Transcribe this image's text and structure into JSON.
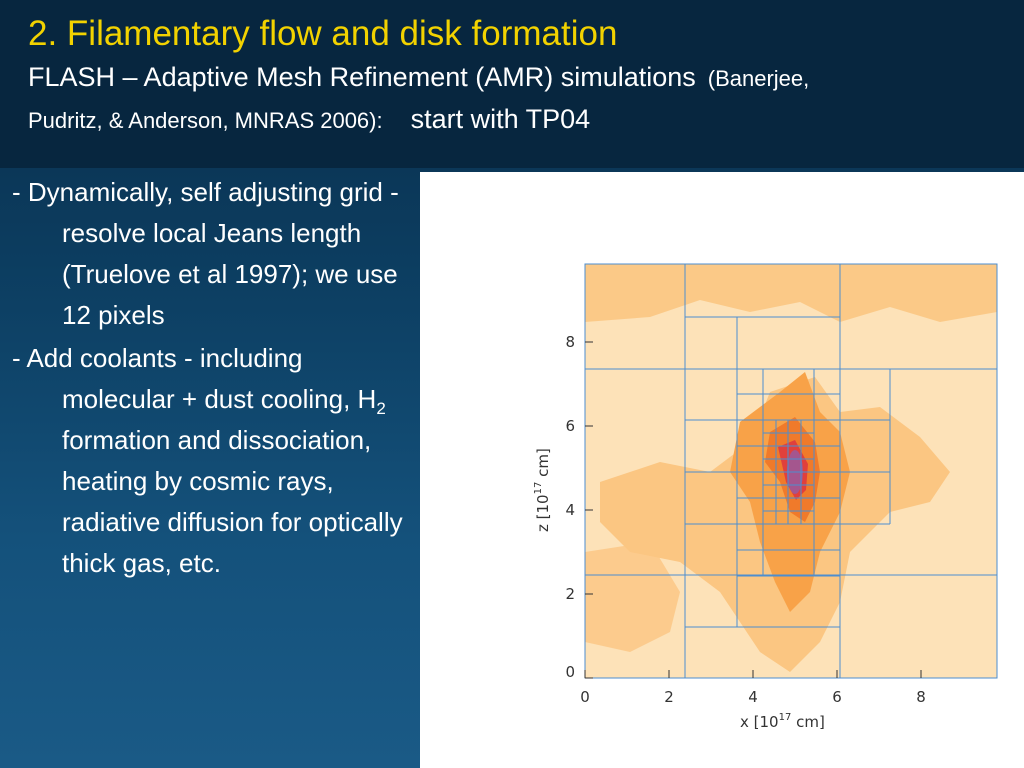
{
  "slide": {
    "title": "2.  Filamentary flow and disk formation",
    "subtitle_main": "FLASH – Adaptive Mesh Refinement (AMR) simulations",
    "citation_part1": "(Banerjee,",
    "citation_part2": "Pudritz, & Anderson, MNRAS 2006):",
    "start_note": "start with TP04"
  },
  "bullets": {
    "b1": "- Dynamically, self adjusting grid - resolve local Jeans length (Truelove et al 1997); we use 12 pixels",
    "b2_pre": "- Add coolants - including molecular + dust cooling, H",
    "b2_sub": "2",
    "b2_post": " formation and dissociation, heating by cosmic rays, radiative diffusion for optically thick gas, etc."
  },
  "figure": {
    "x_axis_label": "x [10",
    "x_axis_exp": "17",
    "x_axis_unit": " cm]",
    "y_axis_label": "z [10",
    "y_axis_exp": "17",
    "y_axis_unit": " cm]",
    "x_ticks": [
      "0",
      "2",
      "4",
      "6",
      "8"
    ],
    "y_ticks": [
      "0",
      "2",
      "4",
      "6",
      "8"
    ],
    "colors": {
      "light": "#fde2b8",
      "mid": "#fbc682",
      "dark": "#f8a248",
      "core": "#f07a2a",
      "hot": "#e0403c",
      "grid": "#4d8ecf"
    }
  }
}
